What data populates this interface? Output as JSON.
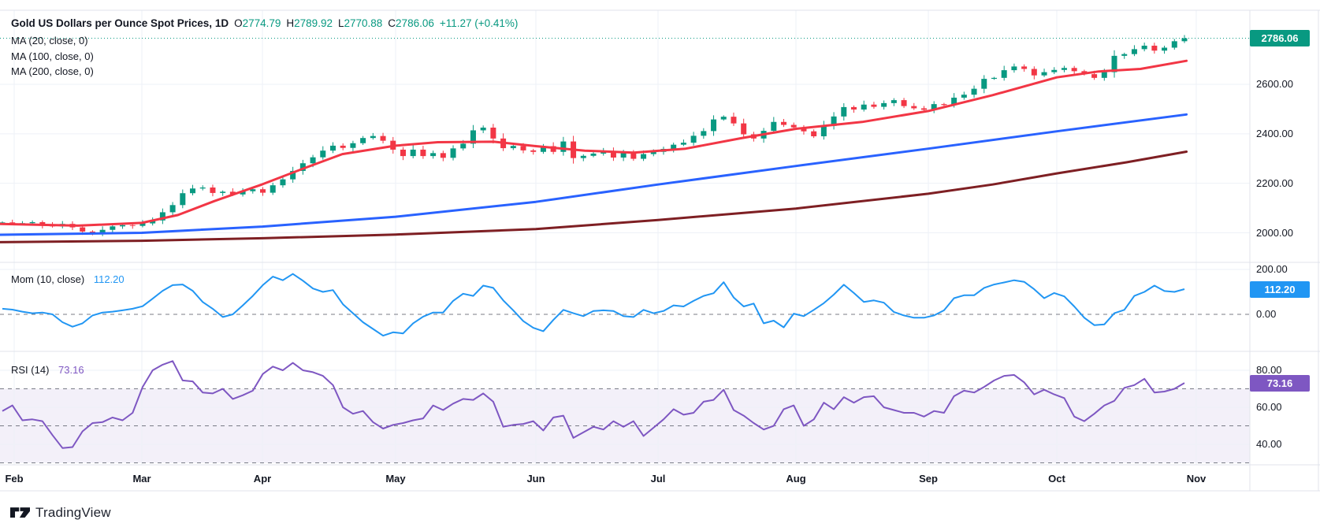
{
  "header": {
    "title": "Gold US Dollars per Ounce Spot Prices, 1D",
    "ohlc": [
      {
        "label": "O",
        "value": "2774.79"
      },
      {
        "label": "H",
        "value": "2789.92"
      },
      {
        "label": "L",
        "value": "2770.88"
      },
      {
        "label": "C",
        "value": "2786.06"
      }
    ],
    "change": "+11.27 (+0.41%)"
  },
  "indicators": {
    "ma": [
      {
        "label": "MA (20, close, 0)",
        "color": "#F23645"
      },
      {
        "label": "MA (100, close, 0)",
        "color": "#2962FF"
      },
      {
        "label": "MA (200, close, 0)",
        "color": "#7E1F23"
      }
    ],
    "mom": {
      "label": "Mom (10, close)",
      "value": "112.20",
      "color": "#2196F3"
    },
    "rsi": {
      "label": "RSI (14)",
      "value": "73.16",
      "color": "#7E57C2"
    }
  },
  "badges": {
    "price": {
      "text": "2786.06",
      "value": 2786.06,
      "color": "#089981"
    },
    "mom": {
      "text": "112.20",
      "value": 112.2,
      "color": "#2196F3"
    },
    "rsi": {
      "text": "73.16",
      "value": 73.16,
      "color": "#7E57C2"
    }
  },
  "axes": {
    "price_ticks": [
      {
        "text": "2600.00",
        "value": 2600
      },
      {
        "text": "2400.00",
        "value": 2400
      },
      {
        "text": "2200.00",
        "value": 2200
      },
      {
        "text": "2000.00",
        "value": 2000
      }
    ],
    "mom_ticks": [
      {
        "text": "200.00",
        "value": 200
      },
      {
        "text": "0.00",
        "value": 0
      }
    ],
    "rsi_ticks": [
      {
        "text": "80.00",
        "value": 80
      },
      {
        "text": "60.00",
        "value": 60
      },
      {
        "text": "40.00",
        "value": 40
      }
    ]
  },
  "time_axis": {
    "months": [
      "Feb",
      "Mar",
      "Apr",
      "May",
      "Jun",
      "Jul",
      "Aug",
      "Sep",
      "Oct",
      "Nov"
    ]
  },
  "watermark": "TradingView",
  "chart_data": {
    "type": "candlestick",
    "symbol": "Gold US Dollars per Ounce Spot Prices",
    "interval": "1D",
    "x_categories_months": [
      "Feb",
      "Mar",
      "Apr",
      "May",
      "Jun",
      "Jul",
      "Aug",
      "Sep",
      "Oct",
      "Nov"
    ],
    "last_bar": {
      "open": 2774.79,
      "high": 2789.92,
      "low": 2770.88,
      "close": 2786.06,
      "change": 11.27,
      "change_pct": 0.41
    },
    "main_pane": {
      "y_axis": {
        "min": 1882,
        "max": 2895,
        "gridlines": [
          2000,
          2200,
          2400,
          2600
        ]
      },
      "current_price_line": 2786.06,
      "closes": [
        2042,
        2038,
        2039,
        2043,
        2031,
        2026,
        2036,
        2022,
        2005,
        1995,
        2012,
        2026,
        2031,
        2028,
        2038,
        2050,
        2083,
        2112,
        2160,
        2179,
        2183,
        2161,
        2166,
        2155,
        2168,
        2176,
        2162,
        2192,
        2216,
        2250,
        2281,
        2305,
        2332,
        2352,
        2343,
        2362,
        2383,
        2391,
        2372,
        2336,
        2310,
        2336,
        2310,
        2322,
        2303,
        2341,
        2360,
        2414,
        2425,
        2381,
        2342,
        2351,
        2333,
        2327,
        2350,
        2327,
        2369,
        2302,
        2311,
        2320,
        2331,
        2304,
        2325,
        2299,
        2318,
        2327,
        2339,
        2356,
        2364,
        2392,
        2411,
        2458,
        2469,
        2442,
        2398,
        2381,
        2412,
        2448,
        2436,
        2426,
        2410,
        2390,
        2432,
        2470,
        2508,
        2498,
        2518,
        2509,
        2524,
        2536,
        2512,
        2503,
        2497,
        2520,
        2516,
        2546,
        2558,
        2582,
        2622,
        2626,
        2657,
        2672,
        2662,
        2636,
        2649,
        2658,
        2666,
        2653,
        2641,
        2626,
        2649,
        2715,
        2722,
        2742,
        2756,
        2736,
        2748,
        2774,
        2786.06
      ],
      "overlays": [
        {
          "name": "MA20",
          "color": "#F23645",
          "anchors_month_price": [
            [
              -0.12,
              2036
            ],
            [
              0.5,
              2029
            ],
            [
              1.0,
              2040
            ],
            [
              1.3,
              2072
            ],
            [
              1.6,
              2128
            ],
            [
              2.0,
              2196
            ],
            [
              2.3,
              2258
            ],
            [
              2.6,
              2318
            ],
            [
              3.0,
              2352
            ],
            [
              3.3,
              2366
            ],
            [
              3.7,
              2368
            ],
            [
              4.0,
              2350
            ],
            [
              4.4,
              2332
            ],
            [
              4.8,
              2324
            ],
            [
              5.2,
              2340
            ],
            [
              5.6,
              2382
            ],
            [
              6.0,
              2420
            ],
            [
              6.5,
              2448
            ],
            [
              7.0,
              2492
            ],
            [
              7.5,
              2556
            ],
            [
              8.0,
              2628
            ],
            [
              8.3,
              2652
            ],
            [
              8.6,
              2662
            ],
            [
              8.93,
              2695
            ]
          ]
        },
        {
          "name": "MA100",
          "color": "#2962FF",
          "anchors_month_price": [
            [
              -0.12,
              1992
            ],
            [
              1,
              2000
            ],
            [
              2,
              2025
            ],
            [
              3,
              2065
            ],
            [
              4,
              2125
            ],
            [
              5,
              2195
            ],
            [
              6,
              2270
            ],
            [
              7,
              2340
            ],
            [
              8,
              2410
            ],
            [
              8.93,
              2478
            ]
          ]
        },
        {
          "name": "MA200",
          "color": "#7E1F23",
          "anchors_month_price": [
            [
              -0.12,
              1962
            ],
            [
              1,
              1968
            ],
            [
              2,
              1978
            ],
            [
              3,
              1993
            ],
            [
              4,
              2015
            ],
            [
              5,
              2052
            ],
            [
              6,
              2098
            ],
            [
              7,
              2158
            ],
            [
              7.5,
              2195
            ],
            [
              8,
              2240
            ],
            [
              8.5,
              2285
            ],
            [
              8.93,
              2328
            ]
          ]
        }
      ]
    },
    "mom_pane": {
      "name": "Momentum (10, close)",
      "current": 112.2,
      "zero_line_dashed": 0,
      "y_ticks": [
        200,
        0
      ],
      "values": [
        25,
        21,
        12,
        5,
        8,
        0,
        -35,
        -55,
        -40,
        -5,
        8,
        12,
        18,
        25,
        36,
        70,
        105,
        130,
        133,
        105,
        55,
        25,
        -12,
        0,
        40,
        82,
        130,
        168,
        152,
        180,
        150,
        115,
        100,
        108,
        45,
        5,
        -35,
        -65,
        -95,
        -80,
        -85,
        -40,
        -10,
        8,
        8,
        60,
        92,
        82,
        128,
        118,
        62,
        18,
        -30,
        -60,
        -75,
        -25,
        20,
        5,
        -8,
        15,
        18,
        15,
        -8,
        -12,
        20,
        5,
        15,
        40,
        35,
        60,
        82,
        94,
        143,
        75,
        35,
        48,
        -40,
        -28,
        -58,
        3,
        -8,
        20,
        50,
        88,
        132,
        95,
        55,
        62,
        52,
        10,
        -5,
        -15,
        -15,
        -5,
        18,
        72,
        85,
        85,
        118,
        133,
        142,
        152,
        145,
        112,
        72,
        95,
        80,
        35,
        -15,
        -48,
        -45,
        5,
        20,
        82,
        100,
        128,
        104,
        100,
        112.2
      ]
    },
    "rsi_pane": {
      "name": "RSI (14)",
      "current": 73.16,
      "band_levels_dashed": [
        70,
        50,
        30
      ],
      "y_ticks": [
        80,
        60,
        40
      ],
      "values": [
        58,
        61,
        53,
        53.5,
        52.5,
        45,
        38,
        38.5,
        47,
        51.5,
        52,
        54.5,
        53,
        57,
        71,
        80,
        83,
        85,
        74.5,
        74,
        68,
        67.5,
        70,
        64.5,
        66.5,
        69,
        78,
        82,
        80,
        84,
        80,
        79,
        77,
        72,
        60,
        56.5,
        58,
        52,
        48.5,
        50.5,
        51.5,
        53,
        54,
        61,
        58.5,
        62,
        64.5,
        64,
        67.5,
        63,
        49.5,
        50.5,
        51,
        52.5,
        47.5,
        54.5,
        55.5,
        43.5,
        46.5,
        49.5,
        48,
        52.5,
        49.5,
        52.5,
        44.5,
        49,
        53.5,
        59,
        56,
        57,
        63,
        64,
        69.5,
        58.5,
        55.5,
        51.5,
        48,
        50,
        59,
        61,
        50,
        53.5,
        62.5,
        59,
        65.5,
        62.5,
        65.5,
        66,
        60,
        58.5,
        57,
        57,
        55,
        58,
        57,
        66,
        69,
        68,
        71,
        74.5,
        77,
        77.5,
        73.5,
        67,
        69.5,
        67,
        65,
        55,
        52.5,
        56.5,
        61,
        63.5,
        70.5,
        72,
        75.4,
        68,
        68.5,
        70,
        73.16
      ]
    },
    "colors": {
      "up": "#089981",
      "down": "#F23645",
      "grid": "#eef1f7",
      "separator": "#e0e3eb",
      "dashed_level": "#787b86"
    }
  }
}
